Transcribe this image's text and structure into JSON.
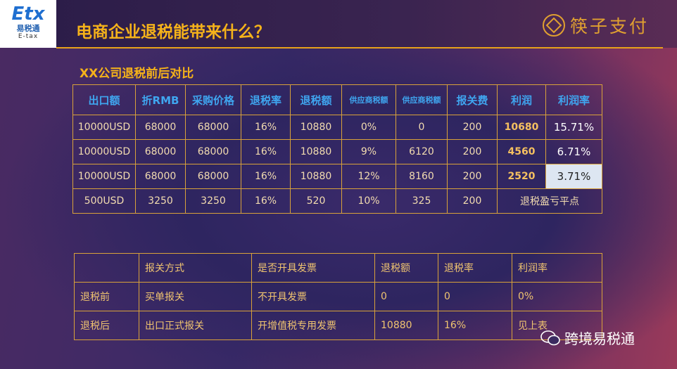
{
  "header": {
    "logo_mark": "Etx",
    "logo_text": "易税通",
    "logo_sub": "E-tax",
    "title": "电商企业退税能带来什么？",
    "brand": "筷子支付"
  },
  "subtitle": "XX公司退税前后对比",
  "table1": {
    "columns": [
      "出口额",
      "折RMB",
      "采购价格",
      "退税率",
      "退税额",
      "供应商税额",
      "供应商税额",
      "报关费",
      "利润",
      "利润率"
    ],
    "rows": [
      [
        "10000USD",
        "68000",
        "68000",
        "16%",
        "10880",
        "0%",
        "0",
        "200",
        "10680",
        "15.71%"
      ],
      [
        "10000USD",
        "68000",
        "68000",
        "16%",
        "10880",
        "9%",
        "6120",
        "200",
        "4560",
        "6.71%"
      ],
      [
        "10000USD",
        "68000",
        "68000",
        "16%",
        "10880",
        "12%",
        "8160",
        "200",
        "2520",
        "3.71%"
      ],
      [
        "500USD",
        "3250",
        "3250",
        "16%",
        "520",
        "10%",
        "325",
        "200",
        "退税盈亏平点"
      ]
    ]
  },
  "table2": {
    "columns": [
      "报关方式",
      "是否开具发票",
      "退税额",
      "退税率",
      "利润率"
    ],
    "rows": [
      [
        "退税前",
        "买单报关",
        "不开具发票",
        "0",
        "0",
        "0%"
      ],
      [
        "退税后",
        "出口正式报关",
        "开增值税专用发票",
        "10880",
        "16%",
        "见上表"
      ]
    ]
  },
  "watermark": "跨境易税通"
}
